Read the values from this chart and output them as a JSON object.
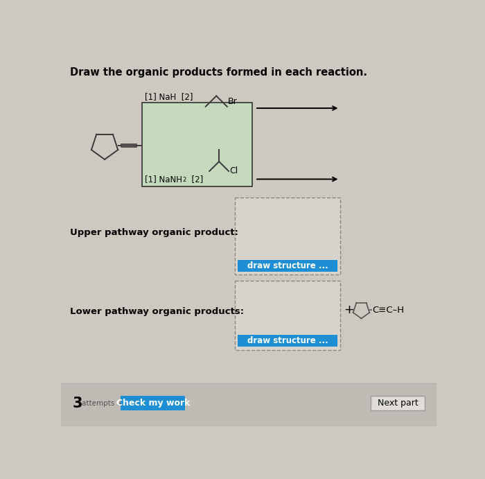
{
  "title": "Draw the organic products formed in each reaction.",
  "background_color": "#cdc8c0",
  "reagent_box_bg": "#c5d9bc",
  "upper_label": "[1] NaH  [2]",
  "lower_label": "[1] NaNH",
  "lower_label2": "  [2]",
  "upper_reagent": "Br",
  "lower_reagent": "Cl",
  "upper_pathway": "Upper pathway organic product:",
  "lower_pathway": "Lower pathway organic products:",
  "draw_btn_color": "#1e8fd5",
  "draw_btn_text": "draw structure ...",
  "check_btn_color": "#1e8fd5",
  "check_btn_text": "Check my work",
  "next_btn_text": "Next part",
  "next_btn_bg": "#e0ddd8",
  "bottom_bar_color": "#bfbab3"
}
